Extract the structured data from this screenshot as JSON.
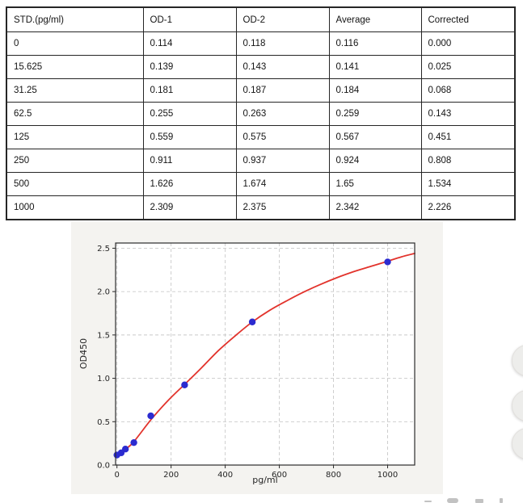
{
  "table": {
    "columns": [
      "STD.(pg/ml)",
      "OD-1",
      "OD-2",
      "Average",
      "Corrected"
    ],
    "rows": [
      [
        "0",
        "0.114",
        "0.118",
        "0.116",
        "0.000"
      ],
      [
        "15.625",
        "0.139",
        "0.143",
        "0.141",
        "0.025"
      ],
      [
        "31.25",
        "0.181",
        "0.187",
        "0.184",
        "0.068"
      ],
      [
        "62.5",
        "0.255",
        "0.263",
        "0.259",
        "0.143"
      ],
      [
        "125",
        "0.559",
        "0.575",
        "0.567",
        "0.451"
      ],
      [
        "250",
        "0.911",
        "0.937",
        "0.924",
        "0.808"
      ],
      [
        "500",
        "1.626",
        "1.674",
        "1.65",
        "1.534"
      ],
      [
        "1000",
        "2.309",
        "2.375",
        "2.342",
        "2.226"
      ]
    ]
  },
  "chart_data": {
    "type": "scatter",
    "title": "",
    "xlabel": "pg/ml",
    "ylabel": "OD450",
    "xlim": [
      -5,
      1100
    ],
    "ylim": [
      0,
      2.56
    ],
    "x_ticks": [
      0,
      200,
      400,
      600,
      800,
      1000
    ],
    "y_ticks": [
      "0.0",
      "0.5",
      "1.0",
      "1.5",
      "2.0",
      "2.5"
    ],
    "grid": "dashed",
    "legend_position": "none",
    "points": {
      "name": "standard-averages",
      "x": [
        0,
        15.625,
        31.25,
        62.5,
        125,
        250,
        500,
        1000
      ],
      "y": [
        0.116,
        0.141,
        0.184,
        0.259,
        0.567,
        0.924,
        1.65,
        2.342
      ]
    },
    "fit_curve": {
      "name": "4pl-fit",
      "points": [
        [
          0,
          0.105
        ],
        [
          31.25,
          0.18
        ],
        [
          62.5,
          0.27
        ],
        [
          125,
          0.52
        ],
        [
          187.5,
          0.74
        ],
        [
          250,
          0.93
        ],
        [
          312,
          1.12
        ],
        [
          375,
          1.32
        ],
        [
          437,
          1.49
        ],
        [
          500,
          1.65
        ],
        [
          562,
          1.78
        ],
        [
          625,
          1.89
        ],
        [
          687,
          1.99
        ],
        [
          750,
          2.08
        ],
        [
          812,
          2.16
        ],
        [
          875,
          2.23
        ],
        [
          937,
          2.29
        ],
        [
          1000,
          2.35
        ],
        [
          1050,
          2.4
        ],
        [
          1100,
          2.44
        ]
      ]
    },
    "colors": {
      "point": "#2b2bd0",
      "curve": "#e2332c",
      "figure_bg": "#f4f3f0",
      "plot_bg": "#ffffff",
      "grid": "#c9c9c9",
      "axis": "#2b2b2b",
      "tick_text": "#262626"
    }
  },
  "floating_buttons": {
    "count": 3
  }
}
